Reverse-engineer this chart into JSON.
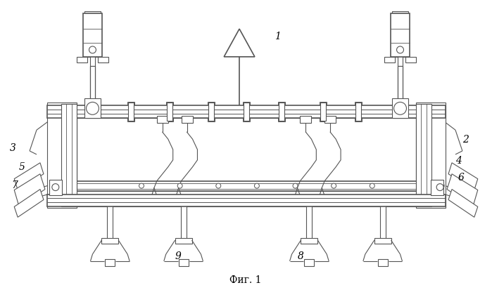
{
  "background_color": "#ffffff",
  "line_color": "#555555",
  "title": "Фиг. 1",
  "title_fontsize": 10,
  "fig_width": 6.99,
  "fig_height": 4.13,
  "dpi": 100
}
